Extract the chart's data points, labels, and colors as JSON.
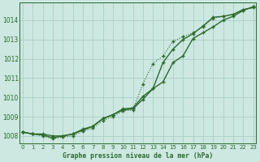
{
  "bg_color": "#cce8e0",
  "grid_color": "#aacfc8",
  "line_color": "#2d6a2d",
  "xlabel": "Graphe pression niveau de la mer (hPa)",
  "ylim": [
    1007.6,
    1014.9
  ],
  "xlim": [
    -0.3,
    23.3
  ],
  "yticks": [
    1008,
    1009,
    1010,
    1011,
    1012,
    1013,
    1014
  ],
  "xticks": [
    0,
    1,
    2,
    3,
    4,
    5,
    6,
    7,
    8,
    9,
    10,
    11,
    12,
    13,
    14,
    15,
    16,
    17,
    18,
    19,
    20,
    21,
    22,
    23
  ],
  "series1_x": [
    0,
    1,
    2,
    3,
    4,
    5,
    6,
    7,
    8,
    9,
    10,
    11,
    12,
    13,
    14,
    15,
    16,
    17,
    18,
    19,
    20,
    21,
    22,
    23
  ],
  "series1_y": [
    1008.2,
    1008.1,
    1008.1,
    1008.0,
    1008.0,
    1008.1,
    1008.3,
    1008.5,
    1008.9,
    1009.1,
    1009.35,
    1009.4,
    1009.9,
    1010.45,
    1011.8,
    1012.5,
    1013.0,
    1013.3,
    1013.7,
    1014.15,
    1014.2,
    1014.3,
    1014.55,
    1014.65
  ],
  "series2_x": [
    0,
    1,
    2,
    3,
    4,
    5,
    6,
    7,
    8,
    9,
    10,
    11,
    12,
    13,
    14,
    15,
    16,
    17,
    18,
    19,
    20,
    21,
    22,
    23
  ],
  "series2_y": [
    1008.2,
    1008.1,
    1008.0,
    1007.85,
    1007.95,
    1008.0,
    1008.25,
    1008.4,
    1008.8,
    1009.0,
    1009.3,
    1009.35,
    1010.7,
    1011.75,
    1012.15,
    1012.9,
    1013.15,
    1013.35,
    1013.65,
    1014.1,
    1014.2,
    1014.3,
    1014.5,
    1014.7
  ],
  "series3_x": [
    0,
    1,
    2,
    3,
    4,
    5,
    6,
    7,
    8,
    9,
    10,
    11,
    12,
    13,
    14,
    15,
    16,
    17,
    18,
    19,
    20,
    21,
    22,
    23
  ],
  "series3_y": [
    1008.2,
    1008.1,
    1008.05,
    1007.9,
    1008.0,
    1008.1,
    1008.35,
    1008.5,
    1008.9,
    1009.1,
    1009.4,
    1009.45,
    1010.05,
    1010.45,
    1010.8,
    1011.8,
    1012.15,
    1013.05,
    1013.35,
    1013.65,
    1014.0,
    1014.2,
    1014.5,
    1014.7
  ]
}
